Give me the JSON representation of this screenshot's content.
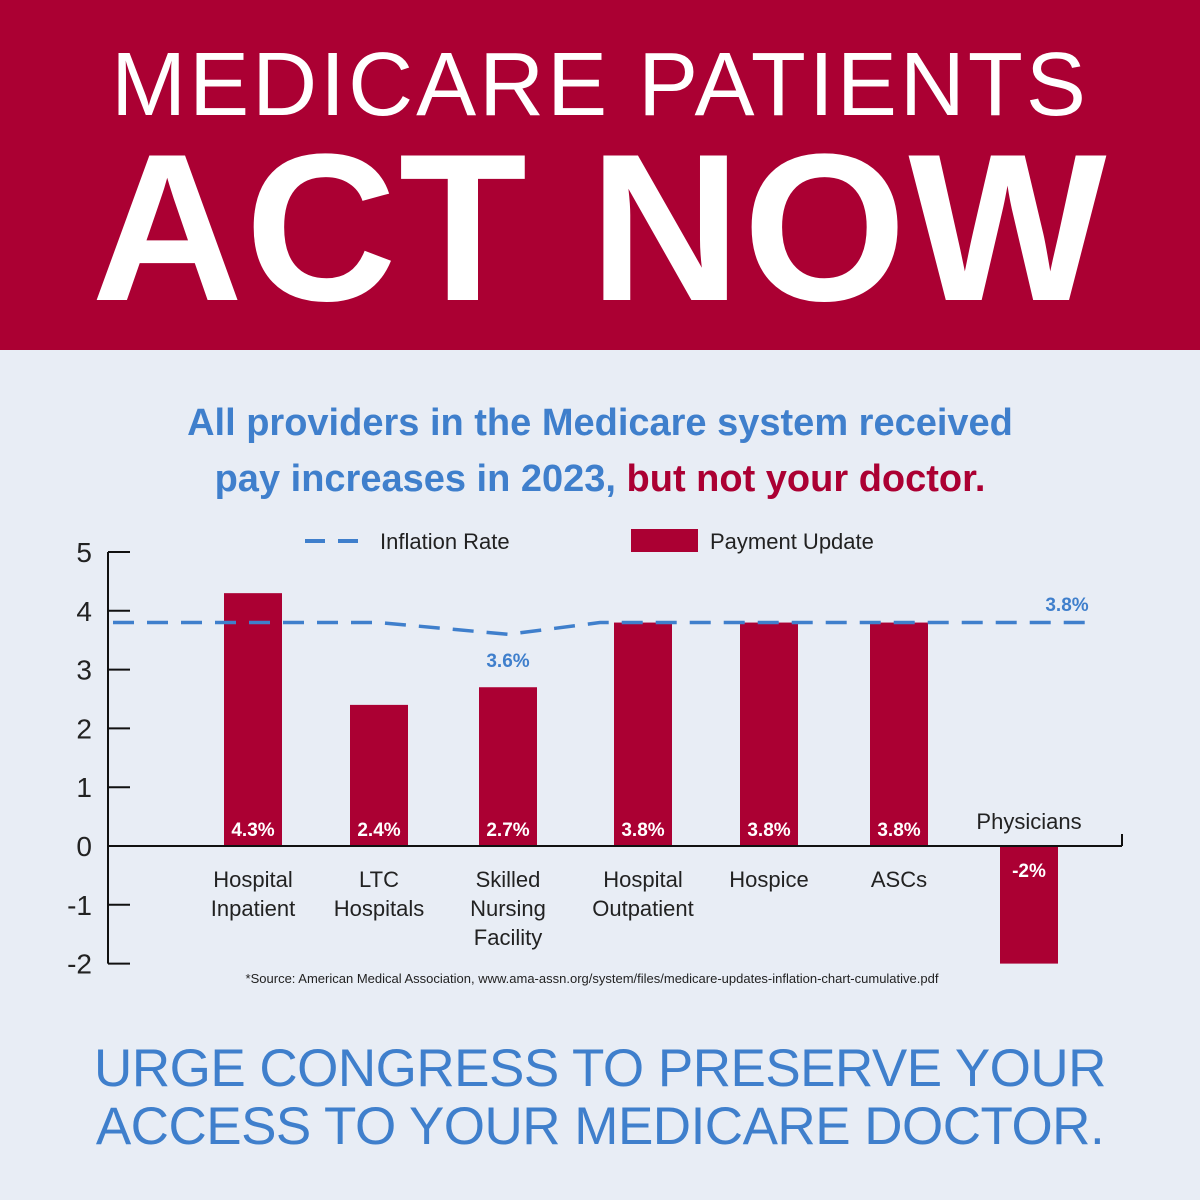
{
  "banner": {
    "line1": "MEDICARE PATIENTS",
    "line2": "ACT NOW"
  },
  "subtitle": {
    "line1": "All providers in the Medicare system received",
    "line2_part1": "pay increases in 2023, ",
    "line2_part2": "but not your doctor."
  },
  "cta": {
    "line1": "URGE CONGRESS TO PRESERVE YOUR",
    "line2": "ACCESS TO YOUR MEDICARE DOCTOR."
  },
  "colors": {
    "brand_red": "#ab0033",
    "brand_blue": "#3f7fcc",
    "background": "#e8edf5"
  },
  "chart_data": {
    "type": "bar",
    "categories": [
      [
        "Hospital",
        "Inpatient"
      ],
      [
        "LTC",
        "Hospitals"
      ],
      [
        "Skilled",
        "Nursing",
        "Facility"
      ],
      [
        "Hospital",
        "Outpatient"
      ],
      [
        "Hospice"
      ],
      [
        "ASCs"
      ],
      [
        "Physicians"
      ]
    ],
    "series": [
      {
        "name": "Payment Update",
        "type": "bar",
        "values": [
          4.3,
          2.4,
          2.7,
          3.8,
          3.8,
          3.8,
          -2
        ],
        "labels": [
          "4.3%",
          "2.4%",
          "2.7%",
          "3.8%",
          "3.8%",
          "3.8%",
          "-2%"
        ]
      },
      {
        "name": "Inflation Rate",
        "type": "line",
        "style": "dashed",
        "values": [
          3.8,
          3.8,
          3.6,
          3.8,
          3.8,
          3.8,
          3.8
        ],
        "labels": [
          "3.6%",
          "3.8%"
        ]
      }
    ],
    "yticks": [
      5,
      4,
      3,
      2,
      1,
      0,
      -1,
      -2
    ],
    "ylim": [
      -2,
      5
    ],
    "legend_position": "top",
    "source": "*Source: American Medical Association, www.ama-assn.org/system/files/medicare-updates-inflation-chart-cumulative.pdf"
  }
}
